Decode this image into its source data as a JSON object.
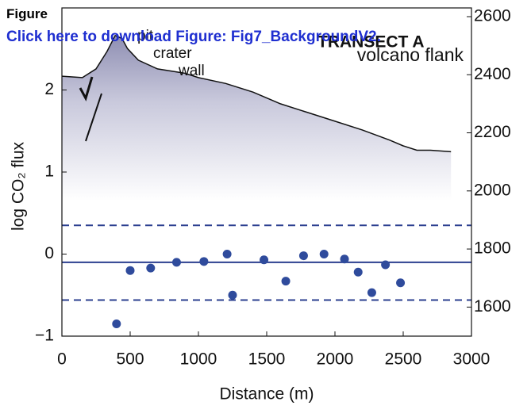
{
  "overlay": {
    "heading": "Figure",
    "link": "Click here to download Figure: Fig7_BackgroundV2."
  },
  "chart_data": {
    "type": "scatter",
    "xlabel": "Distance (m)",
    "ylabel": "log CO₂ flux",
    "xlim": [
      0,
      3000
    ],
    "xticks": [
      0,
      500,
      1000,
      1500,
      2000,
      2500,
      3000
    ],
    "ylim": [
      -1,
      3
    ],
    "yticks": [
      {
        "value": -1,
        "label": "−1"
      },
      0,
      1,
      2
    ],
    "y2lim": [
      1500,
      2630
    ],
    "y2ticks": [
      1600,
      1800,
      2000,
      2200,
      2400,
      2600
    ],
    "annotations": [
      "pit",
      "crater",
      "wall",
      "TRANSECT A",
      "volcano flank"
    ],
    "reference_lines": [
      {
        "value": 0.35,
        "style": "dashed"
      },
      {
        "value": -0.1,
        "style": "solid"
      },
      {
        "value": -0.56,
        "style": "dashed"
      }
    ],
    "reference_color": "#2b3f8f",
    "series": [
      {
        "color": "#2f4b9c",
        "x": [
          400,
          500,
          650,
          840,
          1040,
          1210,
          1250,
          1480,
          1640,
          1770,
          1920,
          2070,
          2170,
          2270,
          2370,
          2480
        ],
        "values": [
          -0.85,
          -0.2,
          -0.17,
          -0.1,
          -0.09,
          0.0,
          -0.5,
          -0.07,
          -0.33,
          -0.02,
          0.0,
          -0.06,
          -0.22,
          -0.47,
          -0.13,
          -0.35
        ]
      },
      {
        "type": "line",
        "axis": "y2",
        "color": "#111111",
        "x": [
          0,
          150,
          250,
          330,
          390,
          440,
          480,
          560,
          700,
          900,
          1000,
          1200,
          1400,
          1600,
          1800,
          2000,
          2200,
          2400,
          2500,
          2600,
          2700,
          2850
        ],
        "values": [
          2395,
          2390,
          2420,
          2480,
          2535,
          2525,
          2490,
          2450,
          2420,
          2405,
          2390,
          2370,
          2340,
          2300,
          2270,
          2240,
          2210,
          2175,
          2155,
          2140,
          2140,
          2135
        ]
      }
    ]
  }
}
